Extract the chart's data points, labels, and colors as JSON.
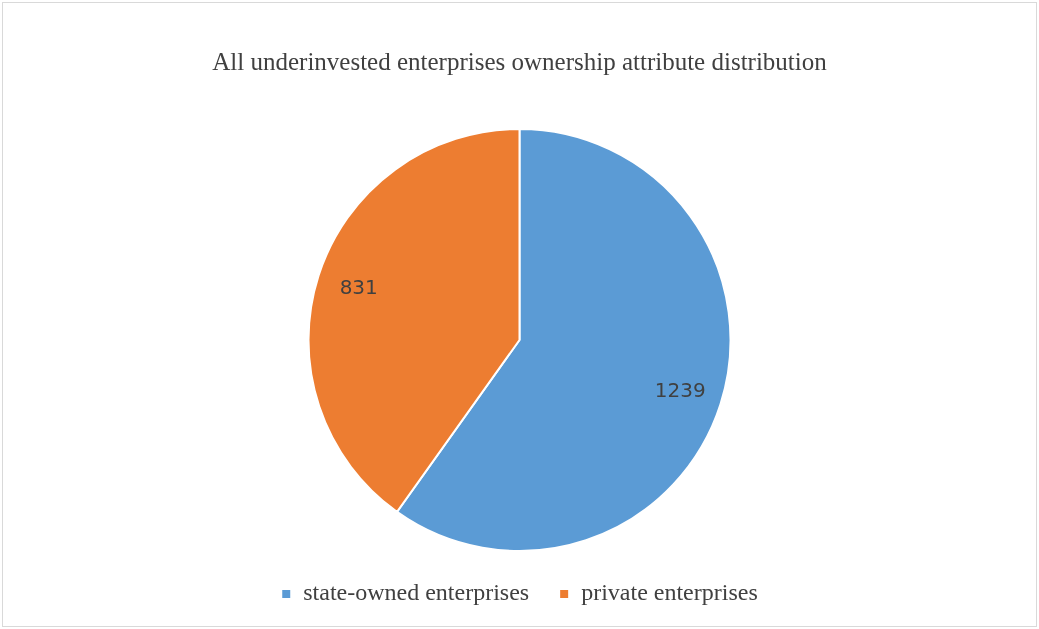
{
  "chart_data": {
    "type": "pie",
    "title": "All underinvested enterprises ownership attribute distribution",
    "categories": [
      "state-owned enterprises",
      "private enterprises"
    ],
    "values": [
      1239,
      831
    ],
    "colors": [
      "#5b9bd5",
      "#ed7d31"
    ],
    "data_labels": true,
    "legend": "bottom"
  }
}
